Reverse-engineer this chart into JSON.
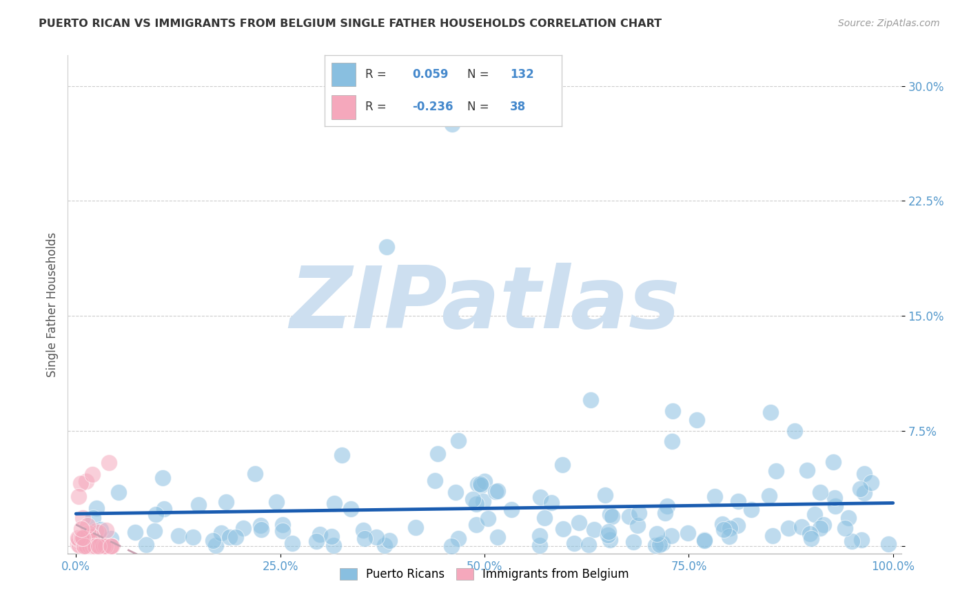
{
  "title": "PUERTO RICAN VS IMMIGRANTS FROM BELGIUM SINGLE FATHER HOUSEHOLDS CORRELATION CHART",
  "source": "Source: ZipAtlas.com",
  "ylabel": "Single Father Households",
  "xlim": [
    -0.01,
    1.01
  ],
  "ylim": [
    -0.005,
    0.32
  ],
  "xticks": [
    0.0,
    0.25,
    0.5,
    0.75,
    1.0
  ],
  "xtick_labels": [
    "0.0%",
    "25.0%",
    "50.0%",
    "75.0%",
    "100.0%"
  ],
  "yticks": [
    0.0,
    0.075,
    0.15,
    0.225,
    0.3
  ],
  "ytick_labels": [
    "",
    "7.5%",
    "15.0%",
    "22.5%",
    "30.0%"
  ],
  "grid_color": "#cccccc",
  "background_color": "#ffffff",
  "watermark": "ZIPatlas",
  "watermark_color": "#cddff0",
  "blue_R": 0.059,
  "blue_N": 132,
  "pink_R": -0.236,
  "pink_N": 38,
  "blue_color": "#89bfe0",
  "pink_color": "#f5a8bc",
  "blue_line_color": "#1a5cb0",
  "pink_line_color": "#c8a0b0",
  "legend_label_blue": "Puerto Ricans",
  "legend_label_pink": "Immigrants from Belgium",
  "title_color": "#333333",
  "axis_label_color": "#555555",
  "tick_color": "#5599cc",
  "stat_color": "#4488cc",
  "stat_text_color": "#333333"
}
